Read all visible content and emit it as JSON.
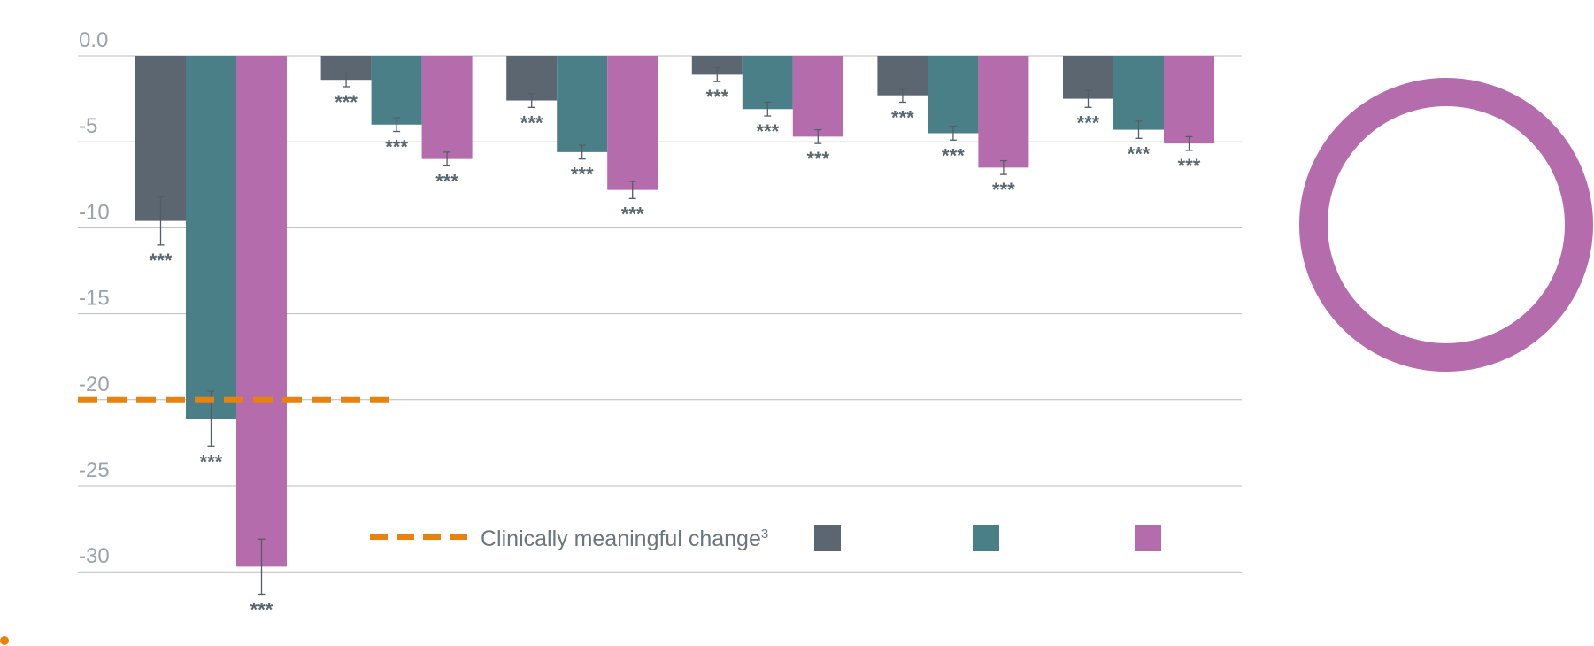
{
  "colors": {
    "series": [
      "#5c6670",
      "#4a7f87",
      "#b56cac"
    ],
    "threshold": "#e8820c",
    "grid": "#b8bec3",
    "ring": "#b56cac"
  },
  "chart_data": {
    "type": "bar",
    "ylim": [
      -31.5,
      0
    ],
    "yticks": [
      {
        "value": 0,
        "label": "0.0"
      },
      {
        "value": -5,
        "label": "-5"
      },
      {
        "value": -10,
        "label": "-10"
      },
      {
        "value": -15,
        "label": "-15"
      },
      {
        "value": -20,
        "label": "-20"
      },
      {
        "value": -25,
        "label": "-25"
      },
      {
        "value": -30,
        "label": "-30"
      }
    ],
    "grid": true,
    "significance_label": "***",
    "series": [
      {
        "values": [
          -9.6,
          -1.4,
          -2.6,
          -1.1,
          -2.3,
          -2.5
        ],
        "errors": [
          1.4,
          0.4,
          0.4,
          0.4,
          0.4,
          0.5
        ]
      },
      {
        "values": [
          -21.1,
          -4.0,
          -5.6,
          -3.1,
          -4.5,
          -4.3
        ],
        "errors": [
          1.6,
          0.4,
          0.4,
          0.4,
          0.4,
          0.5
        ]
      },
      {
        "values": [
          -29.7,
          -6.0,
          -7.8,
          -4.7,
          -6.5,
          -5.1
        ],
        "errors": [
          1.6,
          0.4,
          0.5,
          0.4,
          0.4,
          0.4
        ]
      }
    ],
    "threshold": {
      "value": -20,
      "label": "Clinically meaningful change",
      "superscript": "3"
    }
  }
}
